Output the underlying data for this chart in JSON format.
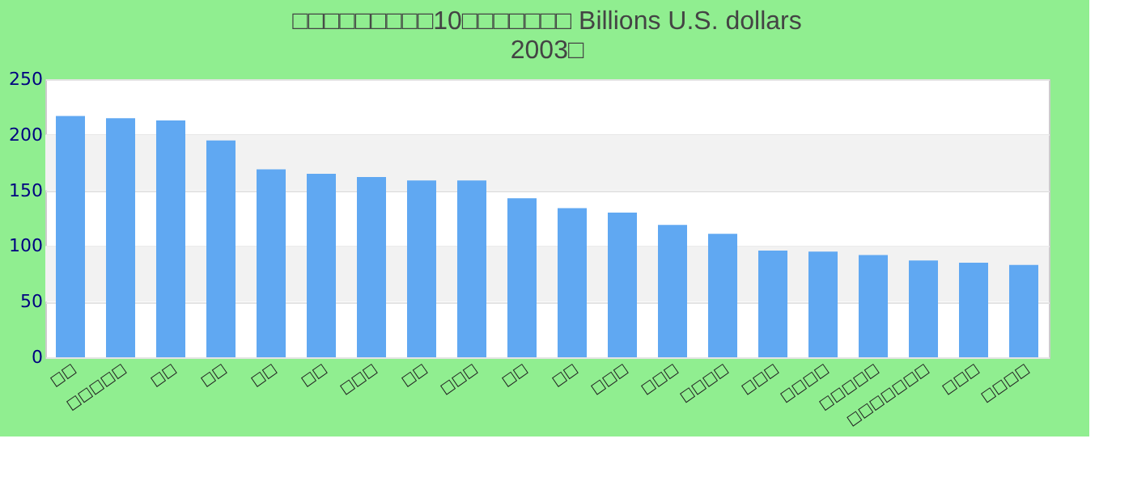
{
  "chart_data": {
    "type": "bar",
    "title": [
      "□□□□□□□□□10□□□□□□□ Billions U.S. dollars",
      "2003□"
    ],
    "categories": [
      "□□",
      "□□□□□",
      "□□",
      "□□",
      "□□",
      "□□",
      "□□□",
      "□□",
      "□□□",
      "□□",
      "□□",
      "□□□",
      "□□□",
      "□□□□",
      "□□□",
      "□□□□",
      "□□□□□",
      "□□□□□□□",
      "□□□",
      "□□□□"
    ],
    "values": [
      217,
      215,
      213,
      195,
      169,
      165,
      162,
      159,
      159,
      143,
      134,
      130,
      119,
      111,
      96,
      95,
      92,
      87,
      85,
      83
    ],
    "color": "#60a8f2",
    "ylim": [
      0,
      250
    ],
    "yticks": [
      0,
      50,
      100,
      150,
      200,
      250
    ],
    "grid": "y"
  }
}
